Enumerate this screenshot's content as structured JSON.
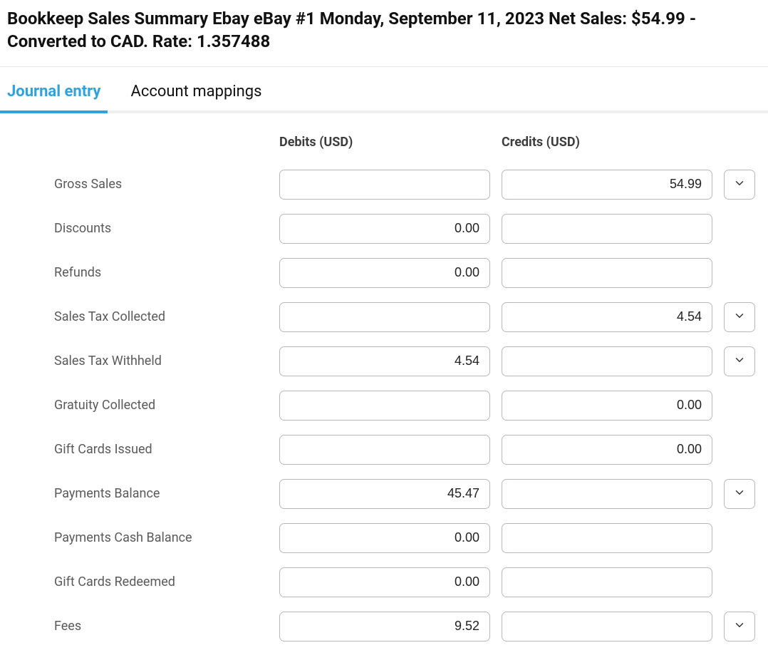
{
  "title": "Bookkeep Sales Summary Ebay eBay #1 Monday, September 11, 2023 Net Sales: $54.99 - Converted to CAD. Rate: 1.357488",
  "tabs": {
    "journal": "Journal entry",
    "mappings": "Account mappings"
  },
  "columns": {
    "debits": "Debits (USD)",
    "credits": "Credits (USD)"
  },
  "rows": [
    {
      "label": "Gross Sales",
      "debit": "",
      "credit": "54.99",
      "expand": true
    },
    {
      "label": "Discounts",
      "debit": "0.00",
      "credit": "",
      "expand": false
    },
    {
      "label": "Refunds",
      "debit": "0.00",
      "credit": "",
      "expand": false
    },
    {
      "label": "Sales Tax Collected",
      "debit": "",
      "credit": "4.54",
      "expand": true
    },
    {
      "label": "Sales Tax Withheld",
      "debit": "4.54",
      "credit": "",
      "expand": true
    },
    {
      "label": "Gratuity Collected",
      "debit": "",
      "credit": "0.00",
      "expand": false
    },
    {
      "label": "Gift Cards Issued",
      "debit": "",
      "credit": "0.00",
      "expand": false
    },
    {
      "label": "Payments Balance",
      "debit": "45.47",
      "credit": "",
      "expand": true
    },
    {
      "label": "Payments Cash Balance",
      "debit": "0.00",
      "credit": "",
      "expand": false
    },
    {
      "label": "Gift Cards Redeemed",
      "debit": "0.00",
      "credit": "",
      "expand": false
    },
    {
      "label": "Fees",
      "debit": "9.52",
      "credit": "",
      "expand": true
    }
  ],
  "colors": {
    "accent": "#2ea3dd",
    "border": "#b7b7c2",
    "text_muted": "#5a5a5a",
    "divider": "#e8e8e8",
    "tab_track": "#efefef"
  }
}
